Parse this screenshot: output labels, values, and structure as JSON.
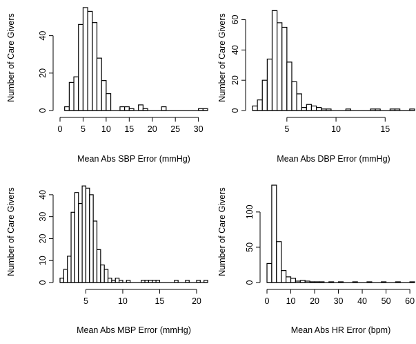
{
  "chart_data": [
    {
      "type": "bar",
      "ylabel": "Number of Care Givers",
      "xlabel": "Mean Abs SBP Error (mmHg)",
      "xlim": [
        0,
        32
      ],
      "ylim": [
        0,
        55
      ],
      "xticks": [
        0,
        5,
        10,
        15,
        20,
        25,
        30
      ],
      "yticks": [
        0,
        20,
        40
      ],
      "bin_width": 1,
      "bins": [
        {
          "x0": 1,
          "x1": 2,
          "count": 2
        },
        {
          "x0": 2,
          "x1": 3,
          "count": 15
        },
        {
          "x0": 3,
          "x1": 4,
          "count": 18
        },
        {
          "x0": 4,
          "x1": 5,
          "count": 46
        },
        {
          "x0": 5,
          "x1": 6,
          "count": 55
        },
        {
          "x0": 6,
          "x1": 7,
          "count": 53
        },
        {
          "x0": 7,
          "x1": 8,
          "count": 47
        },
        {
          "x0": 8,
          "x1": 9,
          "count": 28
        },
        {
          "x0": 9,
          "x1": 10,
          "count": 16
        },
        {
          "x0": 10,
          "x1": 11,
          "count": 9
        },
        {
          "x0": 11,
          "x1": 12,
          "count": 0
        },
        {
          "x0": 12,
          "x1": 13,
          "count": 0
        },
        {
          "x0": 13,
          "x1": 14,
          "count": 2
        },
        {
          "x0": 14,
          "x1": 15,
          "count": 2
        },
        {
          "x0": 15,
          "x1": 16,
          "count": 1
        },
        {
          "x0": 17,
          "x1": 18,
          "count": 3
        },
        {
          "x0": 18,
          "x1": 19,
          "count": 1
        },
        {
          "x0": 22,
          "x1": 23,
          "count": 2
        },
        {
          "x0": 30,
          "x1": 31,
          "count": 1
        },
        {
          "x0": 31,
          "x1": 32,
          "count": 1
        }
      ]
    },
    {
      "type": "bar",
      "ylabel": "Number of Care Givers",
      "xlabel": "Mean Abs DBP Error (mmHg)",
      "xlim": [
        1.5,
        18
      ],
      "ylim": [
        0,
        68
      ],
      "xticks": [
        5,
        10,
        15
      ],
      "yticks": [
        0,
        20,
        40,
        60
      ],
      "bin_width": 0.5,
      "bins": [
        {
          "x0": 1.5,
          "x1": 2.0,
          "count": 3
        },
        {
          "x0": 2.0,
          "x1": 2.5,
          "count": 7
        },
        {
          "x0": 2.5,
          "x1": 3.0,
          "count": 20
        },
        {
          "x0": 3.0,
          "x1": 3.5,
          "count": 34
        },
        {
          "x0": 3.5,
          "x1": 4.0,
          "count": 66
        },
        {
          "x0": 4.0,
          "x1": 4.5,
          "count": 58
        },
        {
          "x0": 4.5,
          "x1": 5.0,
          "count": 55
        },
        {
          "x0": 5.0,
          "x1": 5.5,
          "count": 32
        },
        {
          "x0": 5.5,
          "x1": 6.0,
          "count": 19
        },
        {
          "x0": 6.0,
          "x1": 6.5,
          "count": 11
        },
        {
          "x0": 6.5,
          "x1": 7.0,
          "count": 2
        },
        {
          "x0": 7.0,
          "x1": 7.5,
          "count": 4
        },
        {
          "x0": 7.5,
          "x1": 8.0,
          "count": 3
        },
        {
          "x0": 8.0,
          "x1": 8.5,
          "count": 2
        },
        {
          "x0": 8.5,
          "x1": 9.0,
          "count": 1
        },
        {
          "x0": 9.0,
          "x1": 9.5,
          "count": 1
        },
        {
          "x0": 11.0,
          "x1": 11.5,
          "count": 1
        },
        {
          "x0": 13.5,
          "x1": 14.0,
          "count": 1
        },
        {
          "x0": 14.0,
          "x1": 14.5,
          "count": 1
        },
        {
          "x0": 15.5,
          "x1": 16.0,
          "count": 1
        },
        {
          "x0": 16.0,
          "x1": 16.5,
          "count": 1
        },
        {
          "x0": 17.5,
          "x1": 18.0,
          "count": 1
        }
      ]
    },
    {
      "type": "bar",
      "ylabel": "Number of Care Givers",
      "xlabel": "Mean Abs MBP Error (mmHg)",
      "xlim": [
        1.5,
        21.5
      ],
      "ylim": [
        0,
        45
      ],
      "xticks": [
        5,
        10,
        15,
        20
      ],
      "yticks": [
        0,
        10,
        20,
        30,
        40
      ],
      "bin_width": 0.5,
      "bins": [
        {
          "x0": 1.5,
          "x1": 2.0,
          "count": 2
        },
        {
          "x0": 2.0,
          "x1": 2.5,
          "count": 6
        },
        {
          "x0": 2.5,
          "x1": 3.0,
          "count": 12
        },
        {
          "x0": 3.0,
          "x1": 3.5,
          "count": 32
        },
        {
          "x0": 3.5,
          "x1": 4.0,
          "count": 41
        },
        {
          "x0": 4.0,
          "x1": 4.5,
          "count": 36
        },
        {
          "x0": 4.5,
          "x1": 5.0,
          "count": 44
        },
        {
          "x0": 5.0,
          "x1": 5.5,
          "count": 43
        },
        {
          "x0": 5.5,
          "x1": 6.0,
          "count": 40
        },
        {
          "x0": 6.0,
          "x1": 6.5,
          "count": 28
        },
        {
          "x0": 6.5,
          "x1": 7.0,
          "count": 15
        },
        {
          "x0": 7.0,
          "x1": 7.5,
          "count": 8
        },
        {
          "x0": 7.5,
          "x1": 8.0,
          "count": 6
        },
        {
          "x0": 8.0,
          "x1": 8.5,
          "count": 2
        },
        {
          "x0": 8.5,
          "x1": 9.0,
          "count": 1
        },
        {
          "x0": 9.0,
          "x1": 9.5,
          "count": 2
        },
        {
          "x0": 9.5,
          "x1": 10.0,
          "count": 1
        },
        {
          "x0": 10.5,
          "x1": 11.0,
          "count": 1
        },
        {
          "x0": 12.5,
          "x1": 13.0,
          "count": 1
        },
        {
          "x0": 13.0,
          "x1": 13.5,
          "count": 1
        },
        {
          "x0": 13.5,
          "x1": 14.0,
          "count": 1
        },
        {
          "x0": 14.0,
          "x1": 14.5,
          "count": 1
        },
        {
          "x0": 14.5,
          "x1": 15.0,
          "count": 1
        },
        {
          "x0": 17.0,
          "x1": 17.5,
          "count": 1
        },
        {
          "x0": 18.5,
          "x1": 19.0,
          "count": 1
        },
        {
          "x0": 20.0,
          "x1": 20.5,
          "count": 1
        },
        {
          "x0": 21.0,
          "x1": 21.5,
          "count": 1
        }
      ]
    },
    {
      "type": "bar",
      "ylabel": "Number of Care Givers",
      "xlabel": "Mean Abs HR Error (bpm)",
      "xlim": [
        0,
        62
      ],
      "ylim": [
        0,
        140
      ],
      "xticks": [
        0,
        10,
        20,
        30,
        40,
        50,
        60
      ],
      "yticks": [
        0,
        50,
        100
      ],
      "bin_width": 2,
      "bins": [
        {
          "x0": 0,
          "x1": 2,
          "count": 27
        },
        {
          "x0": 2,
          "x1": 4,
          "count": 138
        },
        {
          "x0": 4,
          "x1": 6,
          "count": 58
        },
        {
          "x0": 6,
          "x1": 8,
          "count": 17
        },
        {
          "x0": 8,
          "x1": 10,
          "count": 8
        },
        {
          "x0": 10,
          "x1": 12,
          "count": 6
        },
        {
          "x0": 12,
          "x1": 14,
          "count": 2
        },
        {
          "x0": 14,
          "x1": 16,
          "count": 3
        },
        {
          "x0": 16,
          "x1": 18,
          "count": 2
        },
        {
          "x0": 18,
          "x1": 20,
          "count": 1
        },
        {
          "x0": 20,
          "x1": 22,
          "count": 1
        },
        {
          "x0": 22,
          "x1": 24,
          "count": 1
        },
        {
          "x0": 26,
          "x1": 28,
          "count": 1
        },
        {
          "x0": 30,
          "x1": 32,
          "count": 1
        },
        {
          "x0": 36,
          "x1": 38,
          "count": 1
        },
        {
          "x0": 42,
          "x1": 44,
          "count": 1
        },
        {
          "x0": 48,
          "x1": 50,
          "count": 1
        },
        {
          "x0": 54,
          "x1": 56,
          "count": 1
        },
        {
          "x0": 60,
          "x1": 62,
          "count": 1
        }
      ]
    }
  ]
}
